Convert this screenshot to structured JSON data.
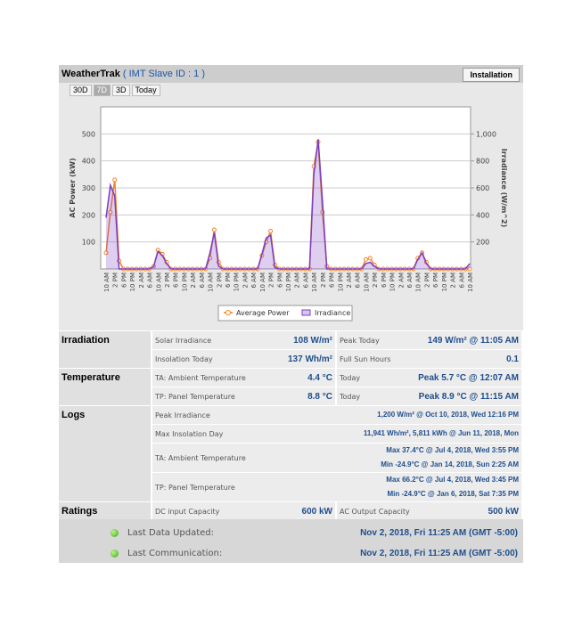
{
  "header": {
    "title": "WeatherTrak",
    "subtitle": "( IMT Slave ID : 1 )",
    "button": "Installation",
    "tabs": [
      "30D",
      "7D",
      "3D",
      "Today"
    ]
  },
  "chart_data": {
    "type": "line",
    "y_label": "AC Power (kW)",
    "y2_label": "Irradiance (W/m^2)",
    "categories": [
      "10 AM",
      null,
      "2 PM",
      null,
      "6 PM",
      null,
      "10 PM",
      null,
      "2 AM",
      null,
      "6 AM",
      null,
      "10 AM",
      null,
      "2 PM",
      null,
      "6 PM",
      null,
      "10 PM",
      null,
      "2 AM",
      null,
      "6 AM",
      null,
      "10 AM",
      null,
      "2 PM",
      null,
      "6 PM",
      null,
      "10 PM",
      null,
      "2 AM",
      null,
      "6 AM",
      null,
      "10 AM",
      null,
      "2 PM",
      null,
      "6 PM",
      null,
      "10 PM",
      null,
      "2 AM",
      null,
      "6 AM",
      null,
      "10 AM",
      null,
      "2 PM",
      null,
      "6 PM",
      null,
      "10 PM",
      null,
      "2 AM",
      null,
      "6 AM",
      null,
      "10 AM",
      null,
      "2 PM",
      null,
      "6 PM",
      null,
      "10 PM",
      null,
      "2 AM",
      null,
      "6 AM",
      null,
      "10 AM",
      null,
      "2 PM",
      null,
      "6 PM",
      null,
      "10 PM",
      null,
      "2 AM",
      null,
      "6 AM",
      null,
      "10 AM"
    ],
    "series": [
      {
        "name": "Average Power",
        "color": "#f58220",
        "axis": "y",
        "values": [
          60,
          210,
          330,
          30,
          0,
          0,
          0,
          0,
          0,
          0,
          0,
          10,
          70,
          55,
          25,
          0,
          0,
          0,
          0,
          0,
          0,
          0,
          0,
          0,
          40,
          145,
          25,
          0,
          0,
          0,
          0,
          0,
          0,
          0,
          0,
          0,
          50,
          100,
          140,
          15,
          0,
          0,
          0,
          0,
          0,
          0,
          0,
          0,
          380,
          470,
          210,
          10,
          0,
          0,
          0,
          0,
          0,
          0,
          0,
          0,
          35,
          40,
          15,
          0,
          0,
          0,
          0,
          0,
          0,
          0,
          0,
          0,
          40,
          60,
          25,
          0,
          0,
          0,
          0,
          0,
          0,
          0,
          0,
          0,
          0
        ]
      },
      {
        "name": "Irradiance",
        "color": "#7b3fc4",
        "axis": "y2",
        "values": [
          380,
          620,
          540,
          0,
          0,
          0,
          0,
          0,
          0,
          0,
          0,
          20,
          130,
          100,
          40,
          0,
          0,
          0,
          0,
          0,
          0,
          0,
          0,
          0,
          120,
          270,
          20,
          0,
          0,
          0,
          0,
          0,
          0,
          0,
          0,
          0,
          110,
          230,
          250,
          10,
          0,
          0,
          0,
          0,
          0,
          0,
          0,
          0,
          700,
          960,
          500,
          0,
          0,
          0,
          0,
          0,
          0,
          0,
          0,
          0,
          40,
          50,
          20,
          0,
          0,
          0,
          0,
          0,
          0,
          0,
          0,
          0,
          70,
          120,
          40,
          0,
          0,
          0,
          0,
          0,
          0,
          0,
          0,
          0,
          40
        ]
      }
    ],
    "ylim": [
      0,
      600
    ],
    "yticks": [
      100,
      200,
      300,
      400,
      500
    ],
    "y2lim": [
      0,
      1200
    ],
    "y2ticks": [
      200,
      400,
      600,
      800,
      {
        "value": 1000,
        "label": "1,000"
      }
    ],
    "grid": true
  },
  "table": {
    "sections": [
      {
        "title": "Irradiation",
        "rows": [
          {
            "label": "Solar Irradiance",
            "value": "108 W/m²",
            "label2": "Peak Today",
            "value2": "149 W/m² @ 11:05 AM"
          },
          {
            "label": "Insolation Today",
            "value": "137 Wh/m²",
            "label2": "Full Sun Hours",
            "value2": "0.1"
          }
        ]
      },
      {
        "title": "Temperature",
        "rows": [
          {
            "label": "TA: Ambient Temperature",
            "value": "4.4 °C",
            "label2": "Today",
            "value2": "Peak 5.7 °C @ 12:07 AM"
          },
          {
            "label": "TP: Panel Temperature",
            "value": "8.8 °C",
            "label2": "Today",
            "value2": "Peak 8.9 °C @ 11:15 AM"
          }
        ]
      },
      {
        "title": "Logs",
        "rows": [
          {
            "label": "Peak Irradiance",
            "values": [
              "1,200 W/m² @ Oct 10, 2018, Wed 12:16 PM"
            ]
          },
          {
            "label": "Max Insolation Day",
            "values": [
              "11,941 Wh/m²,   5,811 kWh @ Jun 11, 2018, Mon"
            ]
          },
          {
            "label": "TA: Ambient Temperature",
            "values": [
              "Max 37.4°C @ Jul 4, 2018, Wed 3:55 PM",
              "Min -24.9°C @ Jan 14, 2018, Sun 2:25 AM"
            ]
          },
          {
            "label": "TP: Panel Temperature",
            "values": [
              "Max 66.2°C @ Jul 4, 2018, Wed 3:45 PM",
              "Min -24.9°C @ Jan 6, 2018, Sat 7:35 PM"
            ]
          }
        ]
      },
      {
        "title": "Ratings",
        "rows": [
          {
            "label": "DC input Capacity",
            "value": "600 kW",
            "label2": "AC Output Capacity",
            "value2": "500 kW"
          }
        ]
      }
    ]
  },
  "status": [
    {
      "label": "Last Data Updated:",
      "value": "Nov 2, 2018, Fri 11:25 AM (GMT -5:00)"
    },
    {
      "label": "Last Communication:",
      "value": "Nov 2, 2018, Fri 11:25 AM (GMT -5:00)"
    }
  ]
}
